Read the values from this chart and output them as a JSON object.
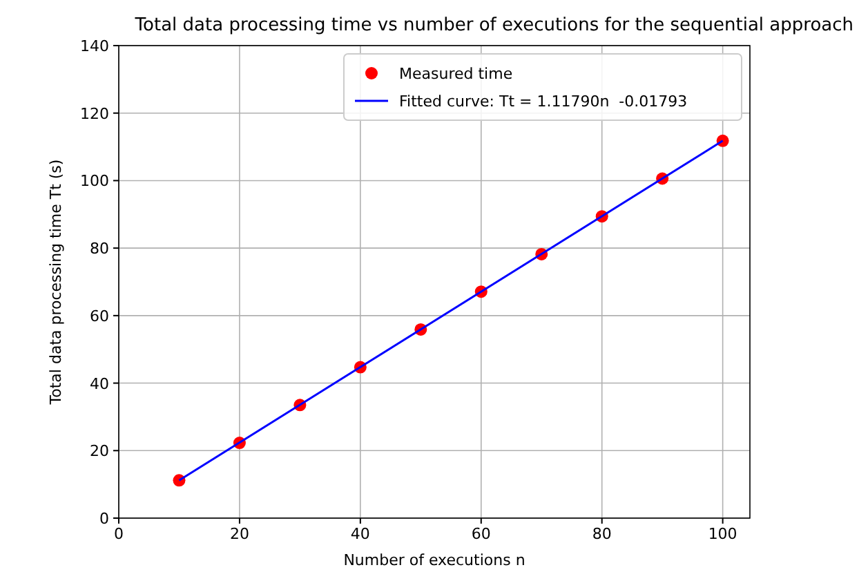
{
  "chart_data": {
    "type": "scatter",
    "title": "Total data processing time vs number of executions for the sequential approach",
    "xlabel": "Number of executions n",
    "ylabel": "Total data processing time Tt (s)",
    "x": [
      10,
      20,
      30,
      40,
      50,
      60,
      70,
      80,
      90,
      100
    ],
    "series": [
      {
        "name": "Measured time",
        "color": "#ff0000",
        "marker": "circle",
        "values": [
          11.2,
          22.3,
          33.5,
          44.7,
          55.9,
          67.1,
          78.2,
          89.4,
          100.6,
          111.8
        ]
      },
      {
        "name": "Fitted curve: Tt = 1.11790n  -0.01793",
        "color": "#0000ff",
        "type": "line",
        "line_style": "solid",
        "x": [
          10,
          100
        ],
        "values": [
          11.2,
          111.8
        ]
      }
    ],
    "xlim": [
      0,
      104.5
    ],
    "ylim": [
      0,
      140
    ],
    "xticks": [
      0,
      20,
      40,
      60,
      80,
      100
    ],
    "yticks": [
      0,
      20,
      40,
      60,
      80,
      100,
      120,
      140
    ],
    "grid": true,
    "legend": "top right"
  }
}
